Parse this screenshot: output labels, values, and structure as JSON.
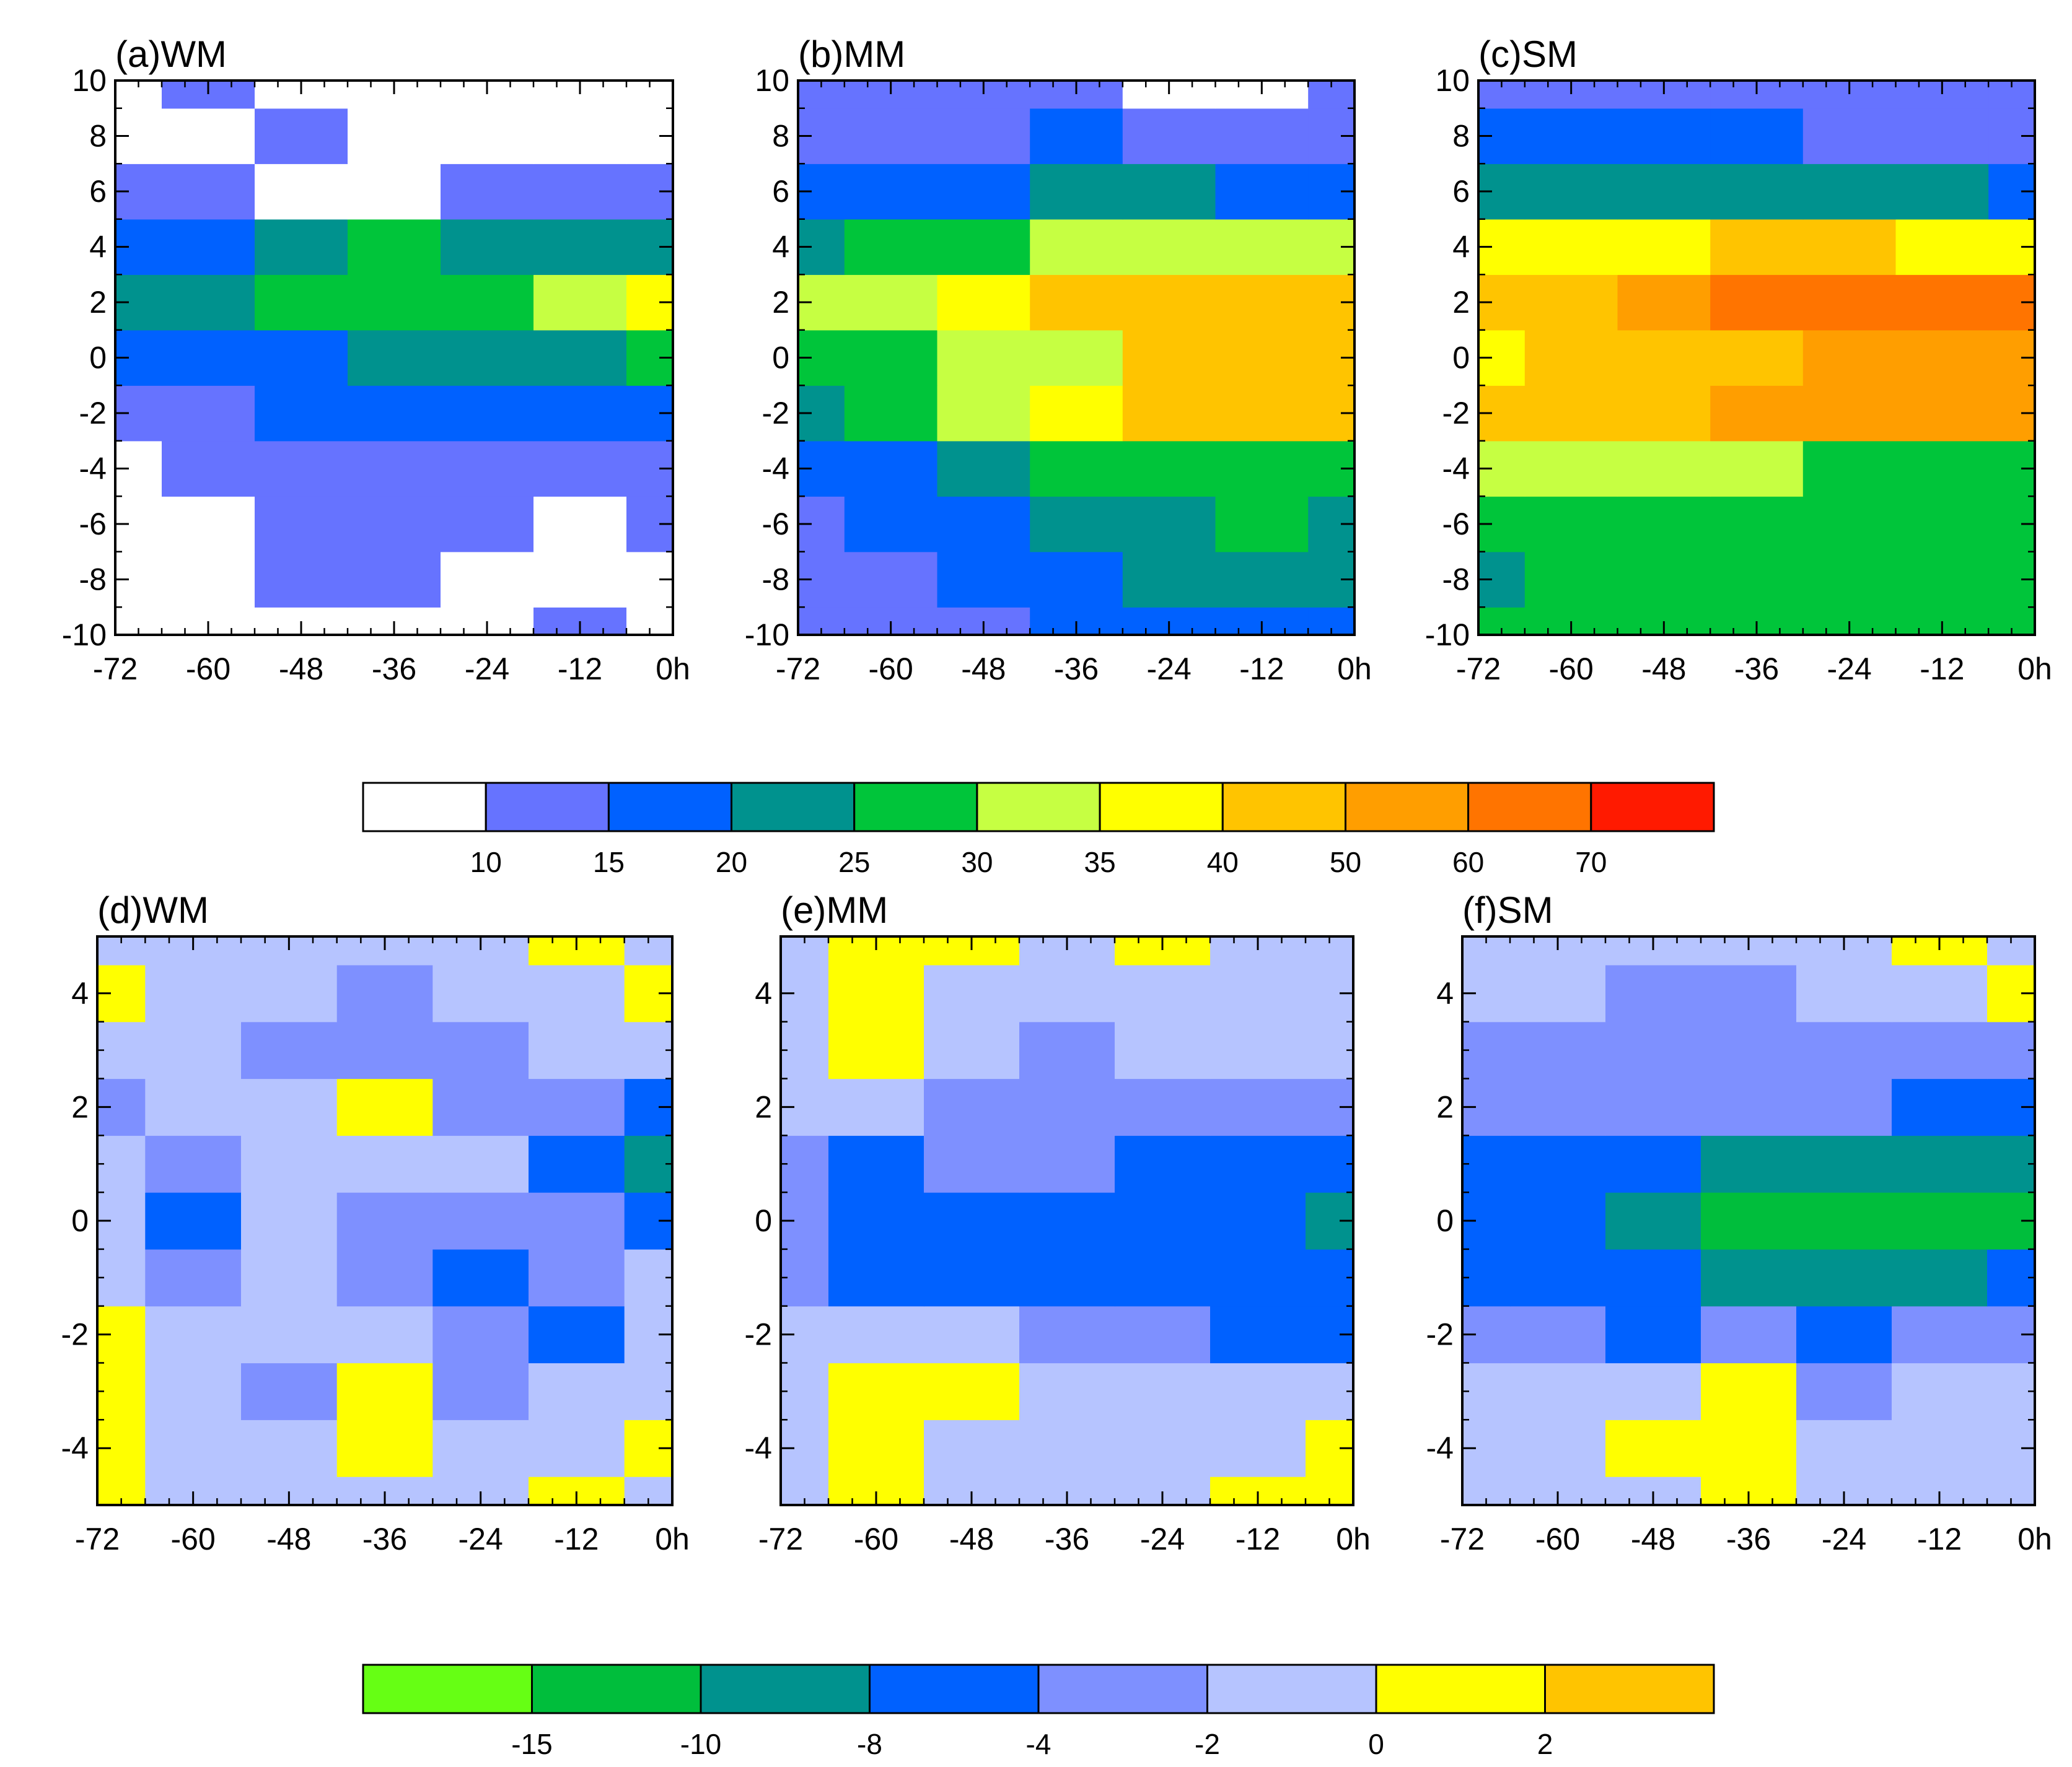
{
  "figure": {
    "x_ticks": [
      -72,
      -60,
      -48,
      -36,
      -24,
      -12,
      0
    ],
    "x_tick_labels": [
      "-72",
      "-60",
      "-48",
      "-36",
      "-24",
      "-12",
      "0h"
    ]
  },
  "chart_data": [
    {
      "type": "heatmap",
      "id": "a",
      "title": "(a)WM",
      "xlim": [
        -72,
        0
      ],
      "ylim": [
        -10,
        10
      ],
      "x": [
        -72,
        -60,
        -48,
        -36,
        -24,
        -12,
        0
      ],
      "y": [
        -10,
        -8,
        -6,
        -4,
        -2,
        0,
        2,
        4,
        6,
        8,
        10
      ],
      "yticks": [
        -10,
        -8,
        -6,
        -4,
        -2,
        0,
        2,
        4,
        6,
        8,
        10
      ],
      "ytick_labels": [
        "-10",
        "-8",
        "-6",
        "-4",
        "-2",
        "0",
        "2",
        "4",
        "6",
        "8",
        "10"
      ],
      "colorbar": "cb1",
      "z": [
        [
          5,
          8,
          9,
          6,
          4,
          12,
          4
        ],
        [
          5,
          8,
          11,
          11,
          9,
          6,
          5
        ],
        [
          4,
          8,
          11,
          12,
          13,
          6,
          12
        ],
        [
          5,
          10,
          11,
          13,
          14,
          13,
          12
        ],
        [
          10,
          13,
          15,
          16,
          17,
          15,
          16
        ],
        [
          18,
          15,
          19,
          22,
          22,
          24,
          27
        ],
        [
          20,
          22,
          27,
          28,
          29,
          34,
          38
        ],
        [
          16,
          19,
          24,
          27,
          24,
          22,
          20
        ],
        [
          11,
          10,
          9,
          7,
          11,
          12,
          12
        ],
        [
          5,
          6,
          11,
          7,
          6,
          5,
          4
        ],
        [
          5,
          10,
          7,
          5,
          4,
          4,
          5
        ]
      ]
    },
    {
      "type": "heatmap",
      "id": "b",
      "title": "(b)MM",
      "xlim": [
        -72,
        0
      ],
      "ylim": [
        -10,
        10
      ],
      "x": [
        -72,
        -60,
        -48,
        -36,
        -24,
        -12,
        0
      ],
      "y": [
        -10,
        -8,
        -6,
        -4,
        -2,
        0,
        2,
        4,
        6,
        8,
        10
      ],
      "yticks": [
        -10,
        -8,
        -6,
        -4,
        -2,
        0,
        2,
        4,
        6,
        8,
        10
      ],
      "ytick_labels": [
        "-10",
        "-8",
        "-6",
        "-4",
        "-2",
        "0",
        "2",
        "4",
        "6",
        "8",
        "10"
      ],
      "colorbar": "cb1",
      "z": [
        [
          12,
          12,
          13,
          17,
          18,
          18,
          16
        ],
        [
          12,
          12,
          15,
          19,
          21,
          21,
          21
        ],
        [
          13,
          15,
          19,
          23,
          24,
          25,
          23
        ],
        [
          16,
          19,
          24,
          28,
          28,
          28,
          29
        ],
        [
          22,
          27,
          32,
          37,
          41,
          43,
          44
        ],
        [
          26,
          29,
          32,
          34,
          40,
          40,
          43
        ],
        [
          33,
          34,
          36,
          41,
          45,
          48,
          46
        ],
        [
          24,
          26,
          29,
          33,
          34,
          33,
          33
        ],
        [
          18,
          18,
          19,
          21,
          21,
          19,
          18
        ],
        [
          14,
          14,
          14,
          15,
          14,
          12,
          11
        ],
        [
          12,
          12,
          12,
          11,
          9,
          8,
          10
        ]
      ]
    },
    {
      "type": "heatmap",
      "id": "c",
      "title": "(c)SM",
      "xlim": [
        -72,
        0
      ],
      "ylim": [
        -10,
        10
      ],
      "x": [
        -72,
        -60,
        -48,
        -36,
        -24,
        -12,
        0
      ],
      "y": [
        -10,
        -8,
        -6,
        -4,
        -2,
        0,
        2,
        4,
        6,
        8,
        10
      ],
      "yticks": [
        -10,
        -8,
        -6,
        -4,
        -2,
        0,
        2,
        4,
        6,
        8,
        10
      ],
      "ytick_labels": [
        "-10",
        "-8",
        "-6",
        "-4",
        "-2",
        "0",
        "2",
        "4",
        "6",
        "8",
        "10"
      ],
      "colorbar": "cb1",
      "z": [
        [
          26,
          27,
          27,
          28,
          27,
          28,
          27
        ],
        [
          24,
          27,
          28,
          27,
          28,
          29,
          26
        ],
        [
          27,
          28,
          29,
          29,
          28,
          26,
          26
        ],
        [
          33,
          33,
          34,
          31,
          29,
          28,
          26
        ],
        [
          42,
          44,
          48,
          52,
          53,
          52,
          50
        ],
        [
          38,
          41,
          45,
          48,
          52,
          55,
          52
        ],
        [
          44,
          47,
          56,
          66,
          68,
          68,
          64
        ],
        [
          35,
          36,
          39,
          42,
          41,
          38,
          36
        ],
        [
          24,
          24,
          23,
          22,
          22,
          20,
          19
        ],
        [
          16,
          17,
          16,
          15,
          14,
          12,
          13
        ],
        [
          14,
          14,
          14,
          12,
          11,
          13,
          14
        ]
      ]
    },
    {
      "type": "heatmap",
      "id": "d",
      "title": "(d)WM",
      "xlim": [
        -72,
        0
      ],
      "ylim": [
        -5,
        5
      ],
      "x": [
        -72,
        -60,
        -48,
        -36,
        -24,
        -12,
        0
      ],
      "y": [
        -5,
        -4,
        -3,
        -2,
        -1,
        0,
        1,
        2,
        3,
        4,
        5
      ],
      "yticks": [
        -4,
        -2,
        0,
        2,
        4
      ],
      "ytick_labels": [
        "-4",
        "-2",
        "0",
        "2",
        "4"
      ],
      "colorbar": "cb2",
      "z": [
        [
          0.6,
          -1.0,
          -1.0,
          -1.0,
          -1.0,
          0.5,
          -1.0
        ],
        [
          0.5,
          -1.0,
          -1.0,
          0.5,
          -1.5,
          -1.0,
          0.5
        ],
        [
          0.7,
          -1.0,
          -2.2,
          0.6,
          -2.5,
          -1.0,
          -1.0
        ],
        [
          0.5,
          -1.0,
          -1.5,
          -0.8,
          -2.5,
          -4.8,
          -1.0
        ],
        [
          -1.0,
          -2.5,
          -1.5,
          -2.5,
          -5.0,
          -2.5,
          -1.2
        ],
        [
          -1.0,
          -5.5,
          -1.5,
          -2.5,
          -3.0,
          -2.5,
          -5.5
        ],
        [
          -1.0,
          -2.5,
          -1.0,
          -1.0,
          -1.5,
          -4.5,
          -9.0
        ],
        [
          -2.5,
          -1.0,
          -1.0,
          0.4,
          -2.5,
          -3.0,
          -4.5
        ],
        [
          -1.0,
          -1.0,
          -2.5,
          -2.5,
          -2.5,
          -1.0,
          -1.5
        ],
        [
          0.5,
          -1.0,
          -1.0,
          -2.5,
          -1.0,
          -1.0,
          0.6
        ],
        [
          -1.0,
          -1.0,
          -1.0,
          -1.0,
          -1.0,
          0.5,
          -1.0
        ]
      ]
    },
    {
      "type": "heatmap",
      "id": "e",
      "title": "(e)MM",
      "xlim": [
        -72,
        0
      ],
      "ylim": [
        -5,
        5
      ],
      "x": [
        -72,
        -60,
        -48,
        -36,
        -24,
        -12,
        0
      ],
      "y": [
        -5,
        -4,
        -3,
        -2,
        -1,
        0,
        1,
        2,
        3,
        4,
        5
      ],
      "yticks": [
        -4,
        -2,
        0,
        2,
        4
      ],
      "ytick_labels": [
        "-4",
        "-2",
        "0",
        "2",
        "4"
      ],
      "colorbar": "cb2",
      "z": [
        [
          -1.0,
          0.5,
          -1.0,
          -1.0,
          -1.0,
          0.5,
          0.6
        ],
        [
          -1.0,
          0.5,
          -1.0,
          -1.0,
          -1.0,
          -1.0,
          0.5
        ],
        [
          -1.0,
          0.5,
          0.5,
          -1.0,
          -1.0,
          -1.5,
          -1.0
        ],
        [
          -1.0,
          -1.0,
          -1.5,
          -2.5,
          -3.0,
          -4.5,
          -4.5
        ],
        [
          -2.5,
          -4.5,
          -5.0,
          -4.5,
          -5.0,
          -5.0,
          -5.5
        ],
        [
          -3.0,
          -5.5,
          -5.0,
          -5.5,
          -5.5,
          -6.0,
          -9.0
        ],
        [
          -2.5,
          -5.0,
          -3.5,
          -4.0,
          -4.5,
          -5.0,
          -5.5
        ],
        [
          -1.0,
          -1.0,
          -2.5,
          -3.0,
          -2.5,
          -3.0,
          -2.5
        ],
        [
          -1.0,
          0.5,
          -1.0,
          -2.5,
          -1.0,
          -1.0,
          -1.0
        ],
        [
          -1.0,
          0.5,
          -1.0,
          -1.0,
          -1.0,
          -1.0,
          -1.0
        ],
        [
          -1.0,
          0.5,
          0.5,
          -1.0,
          0.5,
          -1.0,
          -1.0
        ]
      ]
    },
    {
      "type": "heatmap",
      "id": "f",
      "title": "(f)SM",
      "xlim": [
        -72,
        0
      ],
      "ylim": [
        -5,
        5
      ],
      "x": [
        -72,
        -60,
        -48,
        -36,
        -24,
        -12,
        0
      ],
      "y": [
        -5,
        -4,
        -3,
        -2,
        -1,
        0,
        1,
        2,
        3,
        4,
        5
      ],
      "yticks": [
        -4,
        -2,
        0,
        2,
        4
      ],
      "ytick_labels": [
        "-4",
        "-2",
        "0",
        "2",
        "4"
      ],
      "colorbar": "cb2",
      "z": [
        [
          -1.0,
          -1.0,
          -1.0,
          0.6,
          -1.0,
          -1.0,
          -1.0
        ],
        [
          -1.0,
          -1.0,
          0.5,
          0.8,
          -1.0,
          -1.0,
          -1.0
        ],
        [
          -1.0,
          -1.0,
          -1.5,
          0.5,
          -2.5,
          -1.0,
          -1.5
        ],
        [
          -2.5,
          -2.5,
          -4.5,
          -3.0,
          -4.5,
          -3.0,
          -2.5
        ],
        [
          -4.5,
          -4.5,
          -5.0,
          -9.5,
          -9.0,
          -9.0,
          -7.0
        ],
        [
          -5.0,
          -5.5,
          -9.5,
          -14.0,
          -11.5,
          -12.0,
          -13.0
        ],
        [
          -4.5,
          -5.0,
          -5.0,
          -9.0,
          -9.5,
          -9.0,
          -9.5
        ],
        [
          -2.5,
          -2.5,
          -3.0,
          -3.0,
          -4.0,
          -4.5,
          -5.0
        ],
        [
          -2.5,
          -2.5,
          -3.0,
          -3.0,
          -3.0,
          -2.5,
          -2.5
        ],
        [
          -1.0,
          -1.5,
          -2.5,
          -2.5,
          -1.5,
          -1.0,
          0.5
        ],
        [
          -1.0,
          -1.0,
          -1.0,
          -1.0,
          -1.0,
          0.5,
          -1.0
        ]
      ]
    }
  ],
  "colorbars": {
    "cb1": {
      "levels": [
        10,
        15,
        20,
        25,
        30,
        35,
        40,
        50,
        60,
        70
      ],
      "labels": [
        "10",
        "15",
        "20",
        "25",
        "30",
        "35",
        "40",
        "50",
        "60",
        "70"
      ],
      "colors": [
        "#ffffff",
        "#6673ff",
        "#0061ff",
        "#00928e",
        "#00c53a",
        "#c6ff42",
        "#ffff00",
        "#ffc400",
        "#ff9e00",
        "#ff7400",
        "#ff1a00"
      ]
    },
    "cb2": {
      "levels": [
        -15,
        -10,
        -8,
        -4,
        -2,
        0,
        2
      ],
      "labels": [
        "-15",
        "-10",
        "-8",
        "-4",
        "-2",
        "0",
        "2"
      ],
      "colors": [
        "#66ff14",
        "#00be3c",
        "#00928e",
        "#0061ff",
        "#7e90ff",
        "#b6c4ff",
        "#ffff00",
        "#ffc400"
      ]
    }
  }
}
